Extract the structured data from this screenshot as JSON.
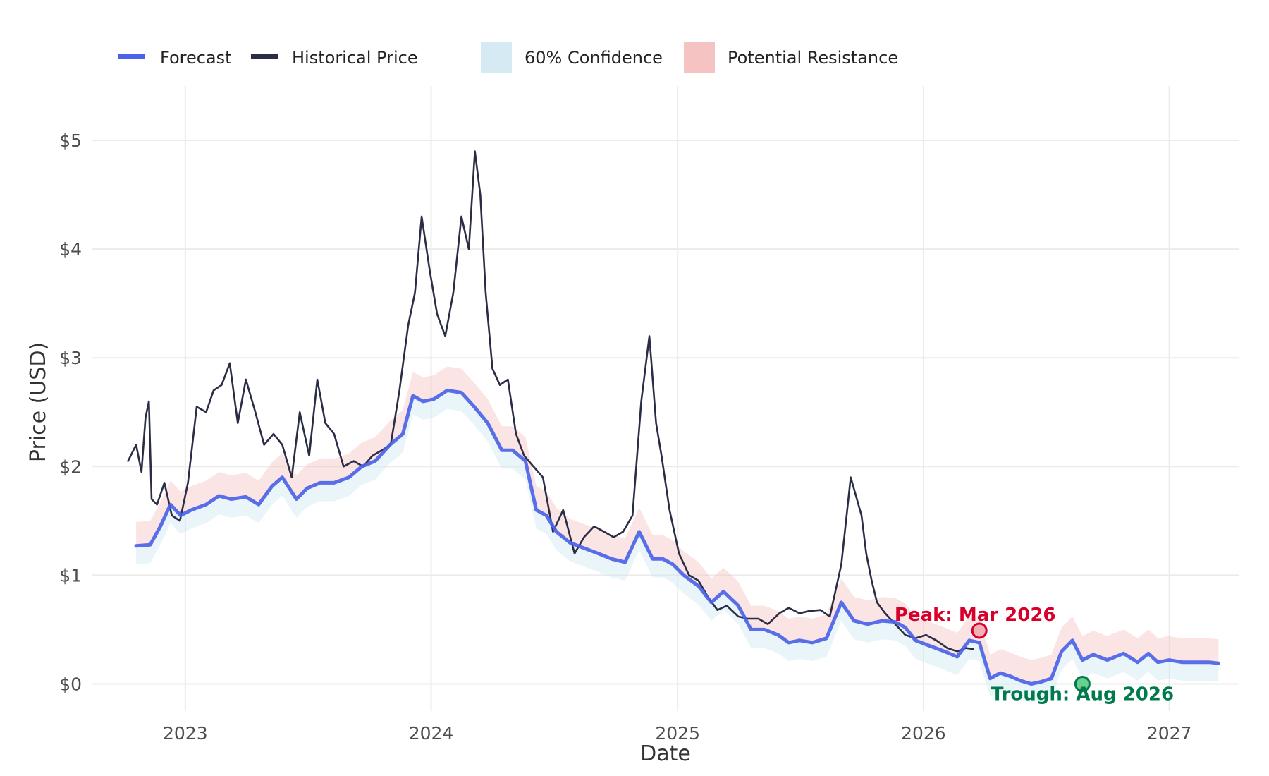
{
  "chart_data": {
    "type": "line",
    "xlabel": "Date",
    "ylabel": "Price (USD)",
    "x_tick_labels": [
      "2023",
      "2024",
      "2025",
      "2026",
      "2027"
    ],
    "y_tick_labels": [
      "$0",
      "$1",
      "$2",
      "$3",
      "$4",
      "$5"
    ],
    "x_range": [
      "2022-08-15",
      "2027-04-15"
    ],
    "ylim": [
      -0.25,
      5.5
    ],
    "grid": true,
    "legend": {
      "placement": "top-left",
      "items": [
        {
          "label": "Forecast",
          "kind": "line",
          "color": "#4b63e8"
        },
        {
          "label": "Historical Price",
          "kind": "line",
          "color": "#2a2d45"
        },
        {
          "label": "60% Confidence",
          "kind": "band",
          "color": "#d1e8f2"
        },
        {
          "label": "Potential Resistance",
          "kind": "band",
          "color": "#f6c3c3"
        }
      ]
    },
    "series": [
      {
        "name": "Historical Price",
        "color": "#2a2d45",
        "x": [
          "2022-10-08",
          "2022-10-20",
          "2022-10-28",
          "2022-11-03",
          "2022-11-08",
          "2022-11-12",
          "2022-11-20",
          "2022-12-01",
          "2022-12-12",
          "2022-12-24",
          "2023-01-05",
          "2023-01-18",
          "2023-02-01",
          "2023-02-12",
          "2023-02-24",
          "2023-03-08",
          "2023-03-20",
          "2023-04-01",
          "2023-04-15",
          "2023-04-28",
          "2023-05-12",
          "2023-05-25",
          "2023-06-08",
          "2023-06-20",
          "2023-07-04",
          "2023-07-16",
          "2023-07-28",
          "2023-08-10",
          "2023-08-24",
          "2023-09-08",
          "2023-09-22",
          "2023-10-06",
          "2023-10-20",
          "2023-11-02",
          "2023-11-15",
          "2023-11-28",
          "2023-12-08",
          "2023-12-18",
          "2023-12-30",
          "2024-01-10",
          "2024-01-22",
          "2024-02-03",
          "2024-02-15",
          "2024-02-26",
          "2024-03-06",
          "2024-03-14",
          "2024-03-22",
          "2024-04-01",
          "2024-04-12",
          "2024-04-24",
          "2024-05-06",
          "2024-05-18",
          "2024-06-01",
          "2024-06-15",
          "2024-06-30",
          "2024-07-15",
          "2024-08-01",
          "2024-08-15",
          "2024-08-30",
          "2024-09-14",
          "2024-09-28",
          "2024-10-12",
          "2024-10-26",
          "2024-11-08",
          "2024-11-20",
          "2024-11-30",
          "2024-12-08",
          "2024-12-20",
          "2025-01-03",
          "2025-01-18",
          "2025-02-01",
          "2025-02-15",
          "2025-03-01",
          "2025-03-15",
          "2025-04-01",
          "2025-04-15",
          "2025-05-01",
          "2025-05-15",
          "2025-06-01",
          "2025-06-15",
          "2025-07-01",
          "2025-07-15",
          "2025-08-01",
          "2025-08-15",
          "2025-09-01",
          "2025-09-15",
          "2025-10-01",
          "2025-10-08",
          "2025-10-16",
          "2025-10-24",
          "2025-11-05",
          "2025-11-20",
          "2025-12-05",
          "2025-12-20",
          "2026-01-05",
          "2026-01-20",
          "2026-02-05",
          "2026-02-20",
          "2026-03-05",
          "2026-03-16"
        ],
        "y": [
          2.05,
          2.2,
          1.95,
          2.45,
          2.6,
          1.7,
          1.65,
          1.85,
          1.55,
          1.5,
          1.85,
          2.55,
          2.5,
          2.7,
          2.75,
          2.95,
          2.4,
          2.8,
          2.5,
          2.2,
          2.3,
          2.2,
          1.9,
          2.5,
          2.1,
          2.8,
          2.4,
          2.3,
          2.0,
          2.05,
          2.0,
          2.1,
          2.15,
          2.2,
          2.7,
          3.3,
          3.6,
          4.3,
          3.8,
          3.4,
          3.2,
          3.6,
          4.3,
          4.0,
          4.9,
          4.5,
          3.6,
          2.9,
          2.75,
          2.8,
          2.3,
          2.1,
          2.0,
          1.9,
          1.4,
          1.6,
          1.2,
          1.35,
          1.45,
          1.4,
          1.35,
          1.4,
          1.55,
          2.6,
          3.2,
          2.4,
          2.1,
          1.6,
          1.2,
          1.0,
          0.95,
          0.8,
          0.68,
          0.72,
          0.62,
          0.6,
          0.6,
          0.55,
          0.65,
          0.7,
          0.65,
          0.67,
          0.68,
          0.62,
          1.1,
          1.9,
          1.55,
          1.2,
          0.95,
          0.75,
          0.65,
          0.55,
          0.45,
          0.42,
          0.45,
          0.4,
          0.33,
          0.3,
          0.33,
          0.32
        ]
      },
      {
        "name": "Forecast",
        "color": "#4b63e8",
        "x": [
          "2022-10-20",
          "2022-11-10",
          "2022-11-25",
          "2022-12-10",
          "2022-12-25",
          "2023-01-10",
          "2023-02-01",
          "2023-02-20",
          "2023-03-10",
          "2023-04-01",
          "2023-04-20",
          "2023-05-10",
          "2023-05-25",
          "2023-06-15",
          "2023-07-01",
          "2023-07-20",
          "2023-08-10",
          "2023-09-01",
          "2023-09-20",
          "2023-10-10",
          "2023-11-01",
          "2023-11-20",
          "2023-12-05",
          "2023-12-20",
          "2024-01-05",
          "2024-01-25",
          "2024-02-15",
          "2024-03-05",
          "2024-03-25",
          "2024-04-15",
          "2024-05-01",
          "2024-05-20",
          "2024-06-05",
          "2024-06-20",
          "2024-07-05",
          "2024-07-25",
          "2024-08-15",
          "2024-09-05",
          "2024-09-25",
          "2024-10-15",
          "2024-11-05",
          "2024-11-25",
          "2024-12-10",
          "2024-12-25",
          "2025-01-10",
          "2025-02-01",
          "2025-02-20",
          "2025-03-10",
          "2025-04-01",
          "2025-04-20",
          "2025-05-10",
          "2025-05-30",
          "2025-06-15",
          "2025-07-01",
          "2025-07-20",
          "2025-08-10",
          "2025-09-01",
          "2025-09-20",
          "2025-10-10",
          "2025-11-01",
          "2025-11-20",
          "2025-12-05",
          "2025-12-20",
          "2026-01-10",
          "2026-02-01",
          "2026-02-20",
          "2026-03-10",
          "2026-03-25",
          "2026-04-10",
          "2026-04-25",
          "2026-05-10",
          "2026-05-25",
          "2026-06-10",
          "2026-06-25",
          "2026-07-10",
          "2026-07-25",
          "2026-08-10",
          "2026-08-25",
          "2026-09-10",
          "2026-10-01",
          "2026-10-25",
          "2026-11-15",
          "2026-12-01",
          "2026-12-15",
          "2027-01-01",
          "2027-01-20",
          "2027-02-10",
          "2027-03-01",
          "2027-03-15"
        ],
        "y": [
          1.27,
          1.28,
          1.45,
          1.65,
          1.55,
          1.6,
          1.65,
          1.73,
          1.7,
          1.72,
          1.65,
          1.82,
          1.9,
          1.7,
          1.8,
          1.85,
          1.85,
          1.9,
          2.0,
          2.05,
          2.2,
          2.3,
          2.65,
          2.6,
          2.62,
          2.7,
          2.68,
          2.55,
          2.4,
          2.15,
          2.15,
          2.05,
          1.6,
          1.55,
          1.4,
          1.3,
          1.25,
          1.2,
          1.15,
          1.12,
          1.4,
          1.15,
          1.15,
          1.1,
          1.0,
          0.9,
          0.75,
          0.85,
          0.72,
          0.5,
          0.5,
          0.45,
          0.38,
          0.4,
          0.38,
          0.42,
          0.75,
          0.58,
          0.55,
          0.58,
          0.57,
          0.52,
          0.4,
          0.35,
          0.3,
          0.25,
          0.4,
          0.38,
          0.05,
          0.1,
          0.07,
          0.03,
          0.0,
          0.02,
          0.05,
          0.3,
          0.4,
          0.22,
          0.27,
          0.22,
          0.28,
          0.2,
          0.28,
          0.2,
          0.22,
          0.2,
          0.2,
          0.2,
          0.19
        ]
      }
    ],
    "bands": [
      {
        "name": "60% Confidence",
        "relative_to": "Forecast",
        "below": 0.17,
        "above": 0.0
      },
      {
        "name": "Potential Resistance",
        "relative_to": "Forecast",
        "below": 0.0,
        "above": 0.22
      }
    ],
    "annotations": [
      {
        "text": "Peak: Mar 2026",
        "x": "2026-03-25",
        "y": 0.49,
        "color": "#d7002a"
      },
      {
        "text": "Trough: Aug 2026",
        "x": "2026-08-25",
        "y": 0.0,
        "color": "#007a4d"
      }
    ]
  }
}
